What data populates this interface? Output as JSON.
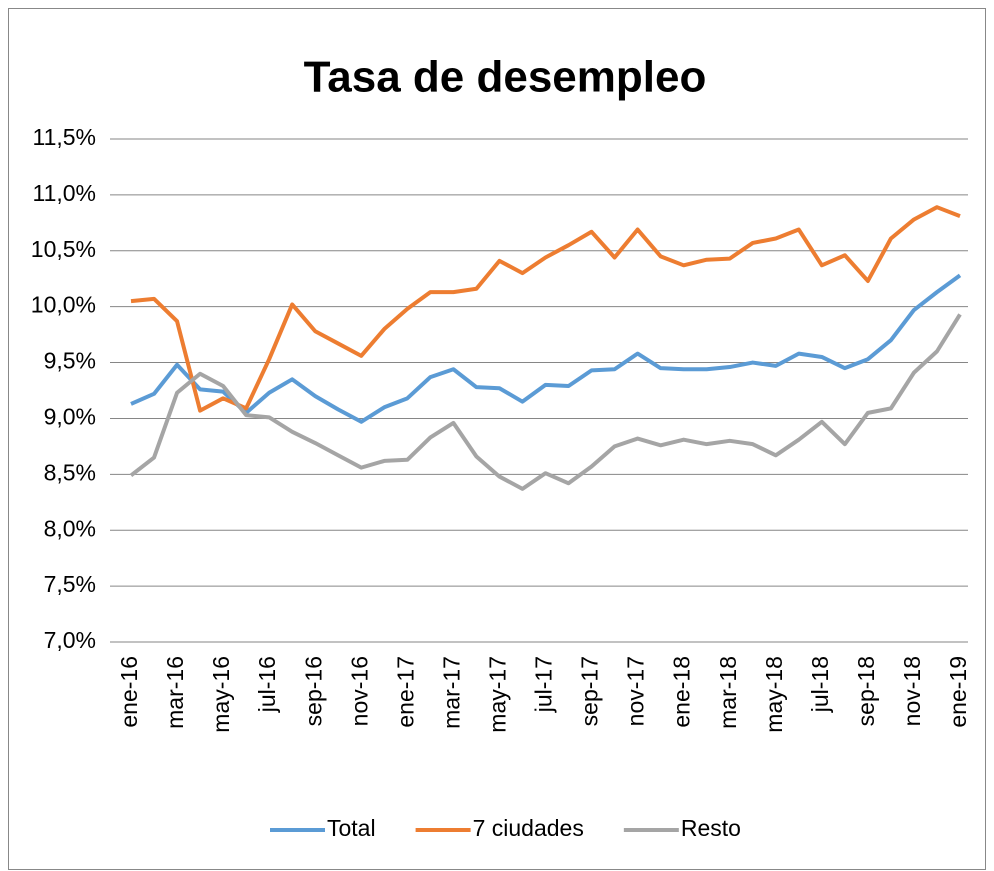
{
  "chart_data": {
    "type": "line",
    "title": "Tasa de desempleo",
    "categories": [
      "ene-16",
      null,
      "mar-16",
      null,
      "may-16",
      null,
      "jul-16",
      null,
      "sep-16",
      null,
      "nov-16",
      null,
      "ene-17",
      null,
      "mar-17",
      null,
      "may-17",
      null,
      "jul-17",
      null,
      "sep-17",
      null,
      "nov-17",
      null,
      "ene-18",
      null,
      "mar-18",
      null,
      "may-18",
      null,
      "jul-18",
      null,
      "sep-18",
      null,
      "nov-18",
      null,
      "ene-19"
    ],
    "series": [
      {
        "name": "Total",
        "color": "#5b9bd5",
        "values": [
          9.13,
          9.22,
          9.48,
          9.26,
          9.24,
          9.05,
          9.23,
          9.35,
          9.2,
          9.08,
          8.97,
          9.1,
          9.18,
          9.37,
          9.44,
          9.28,
          9.27,
          9.15,
          9.3,
          9.29,
          9.43,
          9.44,
          9.58,
          9.45,
          9.44,
          9.44,
          9.46,
          9.5,
          9.47,
          9.58,
          9.55,
          9.45,
          9.53,
          9.7,
          9.97,
          10.13,
          10.28
        ]
      },
      {
        "name": "7 ciudades",
        "color": "#ed7d31",
        "values": [
          10.05,
          10.07,
          9.87,
          9.07,
          9.18,
          9.09,
          9.53,
          10.02,
          9.78,
          9.67,
          9.56,
          9.8,
          9.98,
          10.13,
          10.13,
          10.16,
          10.41,
          10.3,
          10.44,
          10.55,
          10.67,
          10.44,
          10.69,
          10.45,
          10.37,
          10.42,
          10.43,
          10.57,
          10.61,
          10.69,
          10.37,
          10.46,
          10.23,
          10.61,
          10.78,
          10.89,
          10.81
        ]
      },
      {
        "name": "Resto",
        "color": "#a5a5a5",
        "values": [
          8.49,
          8.65,
          9.23,
          9.4,
          9.29,
          9.03,
          9.01,
          8.88,
          8.78,
          8.67,
          8.56,
          8.62,
          8.63,
          8.83,
          8.96,
          8.66,
          8.48,
          8.37,
          8.51,
          8.42,
          8.57,
          8.75,
          8.82,
          8.76,
          8.81,
          8.77,
          8.8,
          8.77,
          8.67,
          8.81,
          8.97,
          8.77,
          9.05,
          9.09,
          9.41,
          9.6,
          9.93
        ]
      }
    ],
    "ylim": [
      7.0,
      11.5
    ],
    "yticks": [
      {
        "value": 7.0,
        "label": "7,0%"
      },
      {
        "value": 7.5,
        "label": "7,5%"
      },
      {
        "value": 8.0,
        "label": "8,0%"
      },
      {
        "value": 8.5,
        "label": "8,5%"
      },
      {
        "value": 9.0,
        "label": "9,0%"
      },
      {
        "value": 9.5,
        "label": "9,5%"
      },
      {
        "value": 10.0,
        "label": "10,0%"
      },
      {
        "value": 10.5,
        "label": "10,5%"
      },
      {
        "value": 11.0,
        "label": "11,0%"
      },
      {
        "value": 11.5,
        "label": "11,5%"
      }
    ],
    "grid": true,
    "legend": "bottom"
  }
}
